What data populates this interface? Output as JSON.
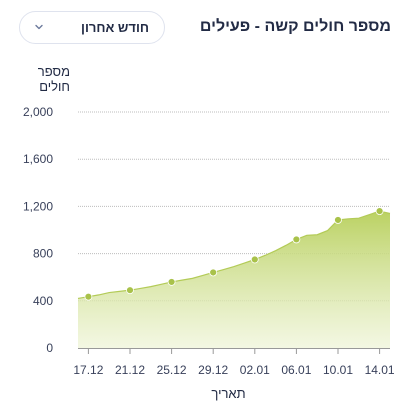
{
  "header": {
    "title": "מספר חולים קשה - פעילים",
    "period_select": {
      "value": "חודש אחרון",
      "icon": "chevron-down-icon"
    }
  },
  "colors": {
    "area_fill_top": "#b7cf5a",
    "area_fill_bottom": "#eef4d6",
    "line": "#b3cb57",
    "point": "#a9c24a",
    "grid": "#bdbdbd",
    "axis": "#999999",
    "chevron": "#6c7a9c"
  },
  "chart_data": {
    "type": "area",
    "xlabel": "תאריך",
    "ylabel": "מספר חולים",
    "ylim": [
      0,
      2000
    ],
    "yticks": [
      "0",
      "400",
      "800",
      "1,200",
      "1,600",
      "2,000"
    ],
    "ytick_values": [
      0,
      400,
      800,
      1200,
      1600,
      2000
    ],
    "grid": true,
    "x_tick_labels": [
      "17.12",
      "21.12",
      "25.12",
      "29.12",
      "02.01",
      "06.01",
      "10.01",
      "14.01"
    ],
    "x": [
      "16.12",
      "17.12",
      "18.12",
      "19.12",
      "20.12",
      "21.12",
      "22.12",
      "23.12",
      "24.12",
      "25.12",
      "26.12",
      "27.12",
      "28.12",
      "29.12",
      "30.12",
      "31.12",
      "01.01",
      "02.01",
      "03.01",
      "04.01",
      "05.01",
      "06.01",
      "07.01",
      "08.01",
      "09.01",
      "10.01",
      "11.01",
      "12.01",
      "13.01",
      "14.01",
      "15.01"
    ],
    "values": [
      420,
      435,
      450,
      470,
      480,
      490,
      505,
      520,
      540,
      560,
      575,
      590,
      615,
      640,
      665,
      690,
      720,
      750,
      785,
      825,
      870,
      920,
      955,
      960,
      995,
      1085,
      1095,
      1100,
      1130,
      1160,
      1140
    ],
    "marker_indices": [
      1,
      5,
      9,
      13,
      17,
      21,
      25,
      29
    ]
  }
}
